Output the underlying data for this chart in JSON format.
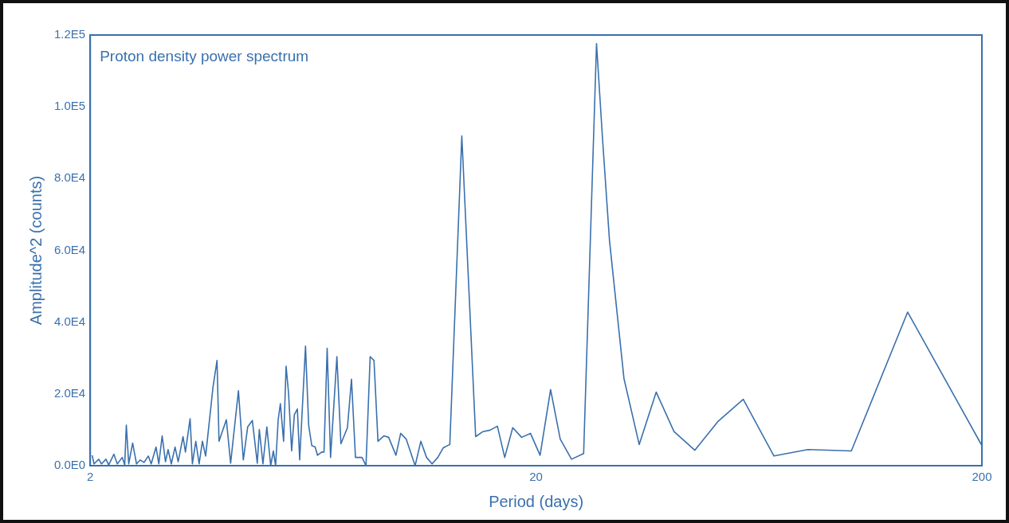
{
  "chart_data": {
    "type": "line",
    "title": "Proton density power spectrum",
    "xlabel": "Period (days)",
    "ylabel": "Amplitude^2 (counts)",
    "log": "x",
    "grid": false,
    "legend": false,
    "marker": "none",
    "line_style": "solid",
    "xlim": [
      2,
      200
    ],
    "xticks": [
      2,
      20,
      200
    ],
    "ylim": [
      0,
      120000
    ],
    "yticks": [
      {
        "value": 0,
        "label": "0.0E0"
      },
      {
        "value": 20000,
        "label": "2.0E4"
      },
      {
        "value": 40000,
        "label": "4.0E4"
      },
      {
        "value": 60000,
        "label": "6.0E4"
      },
      {
        "value": 80000,
        "label": "8.0E4"
      },
      {
        "value": 100000,
        "label": "1.0E5"
      },
      {
        "value": 120000,
        "label": "1.2E5"
      }
    ],
    "series": [
      {
        "color": "#3a70ad",
        "x": [
          2.02,
          2.04,
          2.09,
          2.12,
          2.17,
          2.2,
          2.26,
          2.3,
          2.36,
          2.39,
          2.41,
          2.44,
          2.49,
          2.54,
          2.59,
          2.64,
          2.7,
          2.74,
          2.81,
          2.85,
          2.9,
          2.95,
          2.99,
          3.04,
          3.1,
          3.15,
          3.23,
          3.27,
          3.35,
          3.39,
          3.45,
          3.51,
          3.57,
          3.63,
          3.77,
          3.85,
          3.89,
          4.04,
          4.13,
          4.3,
          4.41,
          4.51,
          4.62,
          4.74,
          4.79,
          4.88,
          4.98,
          5.08,
          5.15,
          5.21,
          5.28,
          5.34,
          5.43,
          5.5,
          5.57,
          5.66,
          5.74,
          5.83,
          5.9,
          6.08,
          6.18,
          6.28,
          6.39,
          6.47,
          6.61,
          6.69,
          6.8,
          6.92,
          7.15,
          7.3,
          7.55,
          7.71,
          7.87,
          8.14,
          8.31,
          8.49,
          8.66,
          8.84,
          9.11,
          9.34,
          9.7,
          9.94,
          10.23,
          10.71,
          11.03,
          11.36,
          11.69,
          12.04,
          12.39,
          12.81,
          13.63,
          14.64,
          15.2,
          15.77,
          16.38,
          17.01,
          17.73,
          18.56,
          19.43,
          20.42,
          21.56,
          22.66,
          24.02,
          25.57,
          27.33,
          28.14,
          29.22,
          31.49,
          34.07,
          37.2,
          40.78,
          45.42,
          51.25,
          58.31,
          68.33,
          81.41,
          101.9,
          136.3,
          200
        ],
        "values": [
          2900,
          500,
          1800,
          500,
          1800,
          200,
          3200,
          500,
          2300,
          200,
          11300,
          500,
          6300,
          500,
          1600,
          900,
          2700,
          500,
          5200,
          500,
          8300,
          1100,
          4500,
          500,
          5200,
          1100,
          8100,
          3800,
          13100,
          500,
          6800,
          500,
          6800,
          2700,
          21800,
          29300,
          6800,
          12800,
          700,
          20900,
          1600,
          10800,
          12600,
          700,
          10100,
          500,
          10800,
          0,
          4100,
          0,
          12800,
          17300,
          6800,
          27700,
          20300,
          4100,
          14200,
          15800,
          1600,
          33300,
          11300,
          5600,
          5200,
          2900,
          3800,
          3800,
          32700,
          2300,
          30400,
          6100,
          10600,
          24100,
          2300,
          2300,
          0,
          30400,
          29300,
          6800,
          8300,
          7900,
          2900,
          9000,
          7400,
          0,
          6800,
          2300,
          500,
          2300,
          5000,
          5900,
          91900,
          8100,
          9500,
          9900,
          11000,
          2300,
          10600,
          7900,
          9000,
          2900,
          21200,
          7400,
          1800,
          3400,
          117600,
          92600,
          62800,
          24300,
          5900,
          20500,
          9500,
          4300,
          12400,
          18500,
          2700,
          4500,
          4100,
          42800,
          5600
        ]
      }
    ]
  }
}
